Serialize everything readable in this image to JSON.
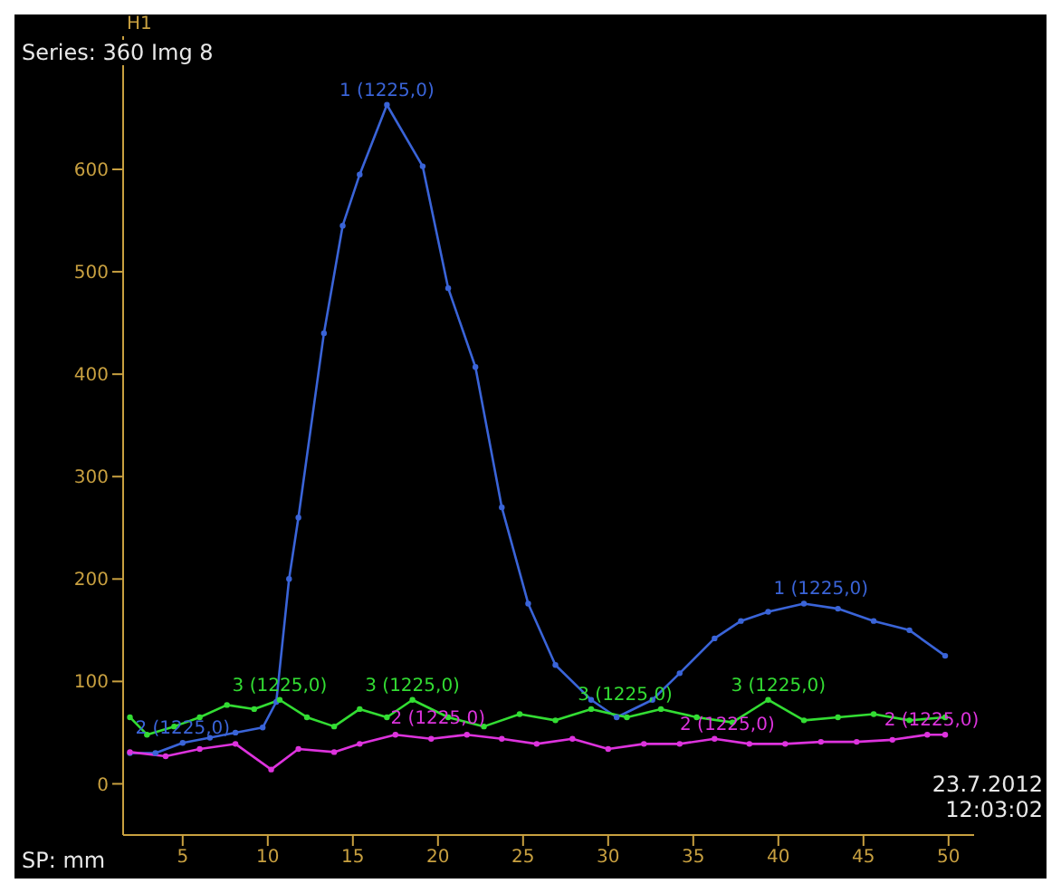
{
  "chart_data": {
    "type": "line",
    "title": "Series: 360 Img 8",
    "xlabel": "SP: mm",
    "marker": "circle",
    "grid": false,
    "xlim": [
      1.5,
      51.5
    ],
    "xticks": [
      5,
      10,
      15,
      20,
      25,
      30,
      35,
      40,
      45,
      50
    ],
    "ylim": [
      -50,
      730
    ],
    "yticks": [
      0,
      100,
      200,
      300,
      400,
      500,
      600
    ],
    "series": [
      {
        "color": "#3a64d8",
        "x": [
          1.9,
          3.4,
          5,
          6.6,
          8.1,
          9.7,
          10.5,
          11.25,
          11.8,
          13.3,
          14.4,
          15.4,
          17,
          19.1,
          20.6,
          22.2,
          23.75,
          25.3,
          26.9,
          29,
          30.5,
          32.6,
          34.2,
          36.25,
          37.8,
          39.4,
          41.5,
          43.5,
          45.6,
          47.7,
          49.8
        ],
        "values": [
          30,
          30,
          40,
          45,
          50,
          55,
          80,
          200,
          260,
          440,
          545,
          595,
          663,
          603,
          484,
          407,
          270,
          176,
          116,
          82,
          65,
          82,
          108,
          142,
          159,
          168,
          176,
          171,
          159,
          150,
          125
        ]
      },
      {
        "color": "#dd33dd",
        "x": [
          1.9,
          4,
          6,
          8.1,
          10.2,
          11.8,
          13.9,
          15.4,
          17.5,
          19.6,
          21.7,
          23.75,
          25.8,
          27.9,
          30,
          32.1,
          34.2,
          36.25,
          38.3,
          40.4,
          42.5,
          44.6,
          46.7,
          48.75,
          49.8
        ],
        "values": [
          31,
          27,
          34,
          39,
          14,
          34,
          31,
          39,
          48,
          44,
          48,
          44,
          39,
          44,
          34,
          39,
          39,
          44,
          39,
          39,
          41,
          41,
          43,
          48,
          48
        ]
      },
      {
        "color": "#33dd33",
        "x": [
          1.9,
          2.9,
          4.5,
          6,
          7.6,
          9.2,
          10.7,
          12.3,
          13.9,
          15.4,
          17,
          18.5,
          20.6,
          22.7,
          24.8,
          26.9,
          29,
          31.1,
          33.1,
          35.2,
          37.3,
          39.4,
          41.5,
          43.5,
          45.6,
          47.7,
          49.8
        ],
        "values": [
          65,
          48,
          56,
          65,
          77,
          73,
          82,
          65,
          56,
          73,
          65,
          82,
          65,
          56,
          68,
          62,
          73,
          65,
          73,
          65,
          60,
          82,
          62,
          65,
          68,
          62,
          65
        ]
      }
    ],
    "annotations": [
      {
        "text": "1 (1225,0)",
        "x": 17,
        "y": 663
      },
      {
        "text": "1 (1225,0)",
        "x": 42.5,
        "y": 176
      },
      {
        "text": "3 (1225,0)",
        "x": 10.7,
        "y": 82
      },
      {
        "text": "3 (1225,0)",
        "x": 18.5,
        "y": 82
      },
      {
        "text": "3 (1225,0)",
        "x": 31,
        "y": 73
      },
      {
        "text": "3 (1225,0)",
        "x": 40,
        "y": 82
      },
      {
        "text": "2 (1225,0)",
        "x": 5,
        "y": 40
      },
      {
        "text": "2 (1225,0)",
        "x": 20,
        "y": 50
      },
      {
        "text": "2 (1225,0)",
        "x": 37,
        "y": 44
      },
      {
        "text": "2 (1225,0)",
        "x": 49,
        "y": 48
      },
      "H1",
      "23.7.2012",
      "12:03:02"
    ]
  }
}
